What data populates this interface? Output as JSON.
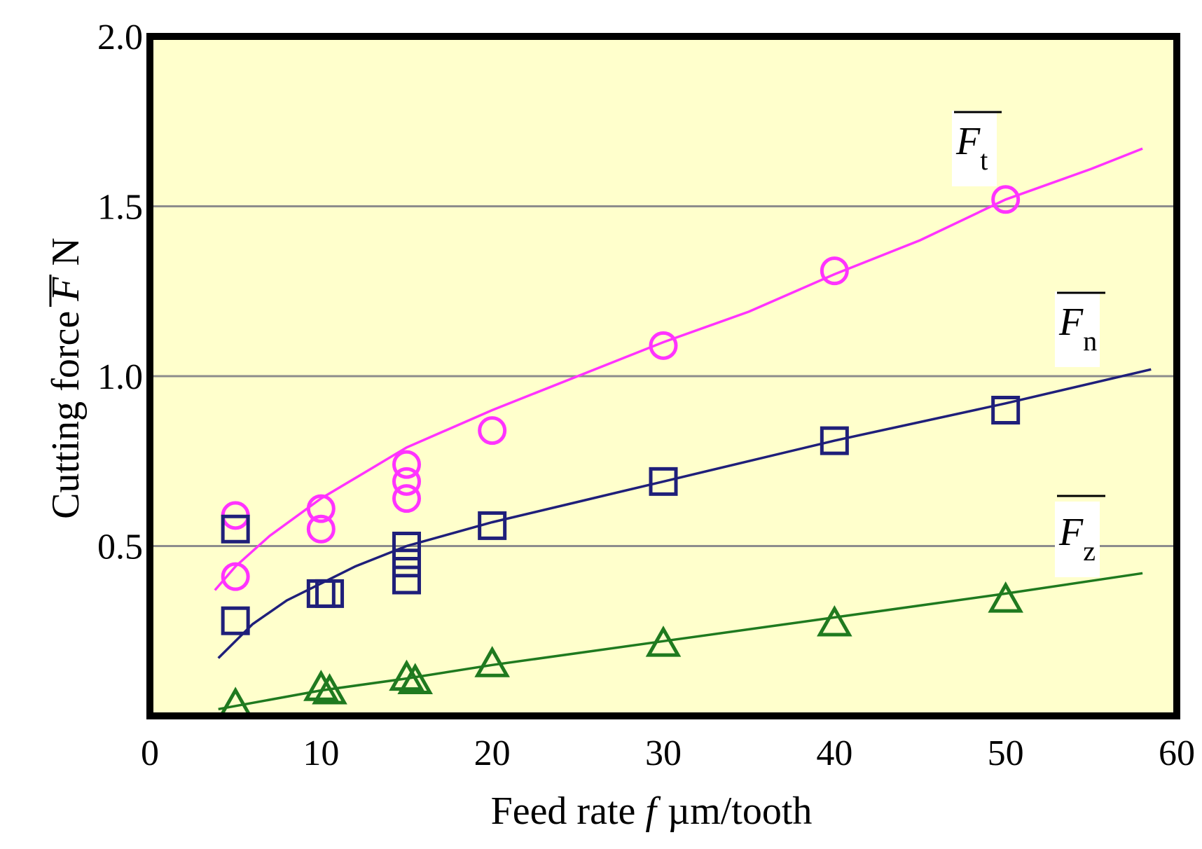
{
  "chart_data": {
    "type": "scatter",
    "xlabel": {
      "prefix": "Feed rate ",
      "var": "f",
      "unit": "µm/tooth"
    },
    "ylabel": {
      "prefix": "Cutting force ",
      "var": "F",
      "unit": "N"
    },
    "xlim": [
      0,
      60
    ],
    "ylim": [
      0,
      2.0
    ],
    "xticks": [
      "0",
      "10",
      "20",
      "30",
      "40",
      "50",
      "60"
    ],
    "yticks": [
      "0.5",
      "1.0",
      "1.5",
      "2.0"
    ],
    "xtick_values": [
      0,
      10,
      20,
      30,
      40,
      50,
      60
    ],
    "ytick_values": [
      0.5,
      1.0,
      1.5,
      2.0
    ],
    "gridlines_y": [
      0.5,
      1.0,
      1.5
    ],
    "series": [
      {
        "name": "Ft",
        "label_main": "F",
        "label_sub": "t",
        "marker": "circle",
        "color": "#ff33ff",
        "points": [
          [
            5,
            0.59
          ],
          [
            5,
            0.41
          ],
          [
            10,
            0.61
          ],
          [
            10,
            0.55
          ],
          [
            15,
            0.74
          ],
          [
            15,
            0.69
          ],
          [
            15,
            0.64
          ],
          [
            20,
            0.84
          ],
          [
            30,
            1.09
          ],
          [
            40,
            1.31
          ],
          [
            50,
            1.52
          ]
        ],
        "fit": [
          [
            3.8,
            0.37
          ],
          [
            5,
            0.44
          ],
          [
            7,
            0.53
          ],
          [
            10,
            0.64
          ],
          [
            13,
            0.73
          ],
          [
            15,
            0.79
          ],
          [
            20,
            0.9
          ],
          [
            25,
            1.0
          ],
          [
            30,
            1.1
          ],
          [
            35,
            1.19
          ],
          [
            40,
            1.3
          ],
          [
            45,
            1.4
          ],
          [
            50,
            1.52
          ],
          [
            55,
            1.61
          ],
          [
            58,
            1.67
          ]
        ]
      },
      {
        "name": "Fn",
        "label_main": "F",
        "label_sub": "n",
        "marker": "square",
        "color": "#1f1f7a",
        "points": [
          [
            5,
            0.55
          ],
          [
            5,
            0.28
          ],
          [
            10,
            0.36
          ],
          [
            10.5,
            0.36
          ],
          [
            15,
            0.5
          ],
          [
            15,
            0.45
          ],
          [
            15,
            0.4
          ],
          [
            20,
            0.56
          ],
          [
            30,
            0.69
          ],
          [
            40,
            0.81
          ],
          [
            50,
            0.9
          ]
        ],
        "fit": [
          [
            4,
            0.17
          ],
          [
            6,
            0.27
          ],
          [
            8,
            0.34
          ],
          [
            10,
            0.39
          ],
          [
            12,
            0.44
          ],
          [
            15,
            0.5
          ],
          [
            20,
            0.57
          ],
          [
            25,
            0.63
          ],
          [
            30,
            0.69
          ],
          [
            40,
            0.81
          ],
          [
            50,
            0.92
          ],
          [
            58.5,
            1.02
          ]
        ]
      },
      {
        "name": "Fz",
        "label_main": "F",
        "label_sub": "z",
        "marker": "triangle",
        "color": "#1f7a1f",
        "points": [
          [
            5,
            0.03
          ],
          [
            10,
            0.08
          ],
          [
            10.5,
            0.07
          ],
          [
            15,
            0.11
          ],
          [
            15.5,
            0.1
          ],
          [
            20,
            0.15
          ],
          [
            30,
            0.21
          ],
          [
            40,
            0.27
          ],
          [
            50,
            0.34
          ]
        ],
        "fit": [
          [
            4,
            0.02
          ],
          [
            10,
            0.075
          ],
          [
            15,
            0.11
          ],
          [
            20,
            0.15
          ],
          [
            30,
            0.22
          ],
          [
            40,
            0.29
          ],
          [
            50,
            0.36
          ],
          [
            58,
            0.42
          ]
        ]
      }
    ]
  }
}
